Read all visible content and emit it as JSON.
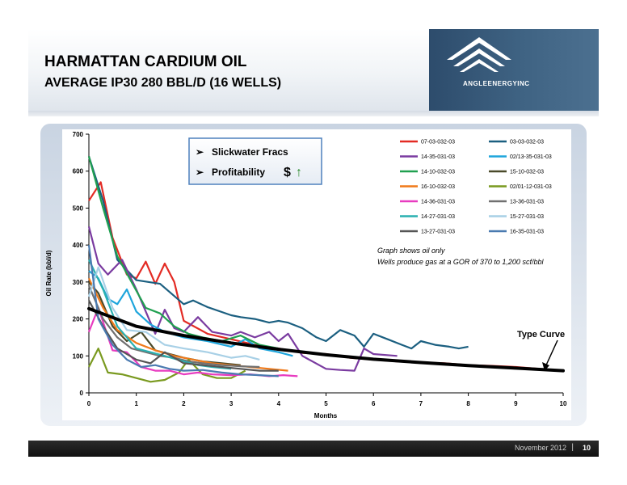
{
  "slide": {
    "title": "HARMATTAN CARDIUM OIL",
    "subtitle": "AVERAGE IP30 280 BBL/D (16 WELLS)",
    "logo_text": "ANGLEENERGYINC",
    "footer_date": "November 2012",
    "footer_separator": "|",
    "page_number": "10"
  },
  "callout": {
    "bullet1": "Slickwater Fracs",
    "bullet2": "Profitability",
    "dollar": "$",
    "arrow": "↑"
  },
  "note": {
    "line1": "Graph shows oil only",
    "line2": "Wells produce gas at a GOR of 370 to 1,200 scf/bbl"
  },
  "colors": {
    "type_curve": "#000000",
    "callout_border": "#4f81bd",
    "up_arrow": "#2a8a2a"
  },
  "chart_data": {
    "type": "line",
    "title": "",
    "xlabel": "Months",
    "ylabel": "Oil Rate (bbl/d)",
    "xlim": [
      0,
      10
    ],
    "ylim": [
      0,
      700
    ],
    "x_ticks": [
      0,
      1,
      2,
      3,
      4,
      5,
      6,
      7,
      8,
      9,
      10
    ],
    "y_ticks": [
      0,
      100,
      200,
      300,
      400,
      500,
      600,
      700
    ],
    "grid": false,
    "legend_position": "top-right",
    "type_curve_label": "Type Curve",
    "type_curve": {
      "x": [
        0,
        1,
        2,
        3,
        4,
        5,
        6,
        7,
        8,
        9,
        10
      ],
      "y": [
        228,
        180,
        155,
        135,
        118,
        103,
        91,
        82,
        74,
        67,
        60
      ]
    },
    "series": [
      {
        "name": "07-03-032-03",
        "color": "#e32b24",
        "x": [
          0,
          0.25,
          0.5,
          0.8,
          1,
          1.2,
          1.4,
          1.6,
          1.8,
          2,
          2.5,
          3,
          3.5,
          4,
          4.5,
          5,
          5.5,
          6,
          6.5,
          7,
          7.5,
          8,
          8.5,
          9,
          9.5
        ],
        "y": [
          520,
          570,
          420,
          320,
          310,
          355,
          295,
          350,
          300,
          195,
          160,
          145,
          130,
          120,
          108,
          105,
          95,
          90,
          85,
          82,
          80,
          75,
          73,
          70,
          65
        ]
      },
      {
        "name": "03-03-032-03",
        "color": "#1b5f80",
        "x": [
          0,
          0.3,
          0.6,
          1,
          1.5,
          2,
          2.2,
          2.5,
          3,
          3.2,
          3.5,
          3.8,
          4,
          4.2,
          4.5,
          4.8,
          5,
          5.3,
          5.6,
          5.8,
          6,
          6.3,
          6.6,
          6.8,
          7,
          7.3,
          7.6,
          7.8,
          8
        ],
        "y": [
          640,
          520,
          360,
          305,
          295,
          240,
          250,
          232,
          210,
          205,
          200,
          190,
          195,
          190,
          175,
          150,
          140,
          170,
          155,
          125,
          160,
          145,
          130,
          120,
          140,
          130,
          125,
          120,
          125
        ]
      },
      {
        "name": "14-35-031-03",
        "color": "#7a3ba0",
        "x": [
          0,
          0.2,
          0.4,
          0.7,
          1,
          1.4,
          1.6,
          1.8,
          2,
          2.3,
          2.6,
          3,
          3.2,
          3.5,
          3.8,
          4,
          4.2,
          4.5,
          5,
          5.3,
          5.6,
          5.8,
          6,
          6.5
        ],
        "y": [
          450,
          350,
          320,
          360,
          280,
          160,
          225,
          175,
          165,
          205,
          165,
          155,
          165,
          150,
          165,
          140,
          160,
          100,
          65,
          62,
          60,
          120,
          105,
          100
        ]
      },
      {
        "name": "02/13-35-031-03",
        "color": "#1ea5dc",
        "x": [
          0,
          0.2,
          0.4,
          0.6,
          0.8,
          1,
          1.3,
          1.6,
          2,
          2.5,
          3,
          3.3,
          3.6,
          4,
          4.3
        ],
        "y": [
          330,
          310,
          255,
          240,
          280,
          220,
          185,
          165,
          150,
          140,
          125,
          145,
          120,
          110,
          100
        ]
      },
      {
        "name": "14-10-032-03",
        "color": "#20a050",
        "x": [
          0,
          0.3,
          0.6,
          0.9,
          1.2,
          1.5,
          1.8,
          2.1,
          2.4,
          2.8,
          3.2,
          3.6,
          4
        ],
        "y": [
          640,
          500,
          370,
          300,
          230,
          215,
          180,
          160,
          150,
          140,
          155,
          130,
          120
        ]
      },
      {
        "name": "15-10-032-03",
        "color": "#4a4a2a",
        "x": [
          0,
          0.2,
          0.5,
          0.8,
          1.1,
          1.4,
          1.7,
          2,
          2.4,
          2.8,
          3.2
        ],
        "y": [
          300,
          270,
          180,
          140,
          165,
          115,
          105,
          95,
          85,
          80,
          75
        ]
      },
      {
        "name": "16-10-032-03",
        "color": "#f07a1a",
        "x": [
          0,
          0.3,
          0.6,
          1,
          1.4,
          1.8,
          2.2,
          2.6,
          3,
          3.4,
          3.8,
          4.2
        ],
        "y": [
          310,
          230,
          170,
          135,
          115,
          100,
          90,
          80,
          75,
          70,
          65,
          60
        ]
      },
      {
        "name": "02/01-12-031-03",
        "color": "#7a9a20",
        "x": [
          0,
          0.2,
          0.4,
          0.7,
          1,
          1.3,
          1.6,
          1.9,
          2.1,
          2.4,
          2.7,
          3,
          3.3
        ],
        "y": [
          70,
          120,
          55,
          50,
          40,
          30,
          35,
          55,
          90,
          50,
          40,
          40,
          60
        ]
      },
      {
        "name": "14-36-031-03",
        "color": "#e83cc0",
        "x": [
          0,
          0.2,
          0.5,
          0.8,
          1.1,
          1.4,
          1.7,
          2,
          2.3,
          2.6,
          3,
          3.4,
          3.8,
          4.1,
          4.4
        ],
        "y": [
          165,
          230,
          115,
          110,
          70,
          60,
          60,
          50,
          55,
          50,
          48,
          50,
          45,
          48,
          45
        ]
      },
      {
        "name": "13-36-031-03",
        "color": "#707070",
        "x": [
          0,
          0.3,
          0.6,
          0.9,
          1.2,
          1.5,
          1.8,
          2.1,
          2.4,
          2.8,
          3.2,
          3.6
        ],
        "y": [
          290,
          200,
          150,
          120,
          110,
          100,
          95,
          85,
          80,
          75,
          72,
          70
        ]
      },
      {
        "name": "14-27-031-03",
        "color": "#2ab0b0",
        "x": [
          0,
          0.3,
          0.6,
          1,
          1.3,
          1.6,
          2,
          2.3,
          2.6,
          3
        ],
        "y": [
          360,
          280,
          180,
          120,
          110,
          100,
          85,
          75,
          70,
          65
        ]
      },
      {
        "name": "15-27-031-03",
        "color": "#a8d0e6",
        "x": [
          0,
          0.2,
          0.5,
          0.8,
          1.2,
          1.6,
          2,
          2.5,
          3,
          3.3,
          3.6
        ],
        "y": [
          260,
          340,
          230,
          170,
          165,
          130,
          120,
          110,
          95,
          100,
          90
        ]
      },
      {
        "name": "13-27-031-03",
        "color": "#555555",
        "x": [
          0,
          0.3,
          0.6,
          1,
          1.3,
          1.6,
          2,
          2.4,
          2.8,
          3.2,
          3.6,
          4
        ],
        "y": [
          250,
          180,
          120,
          90,
          80,
          110,
          80,
          75,
          70,
          65,
          60,
          60
        ]
      },
      {
        "name": "16-35-031-03",
        "color": "#4a7ab0",
        "x": [
          0,
          0.2,
          0.5,
          0.8,
          1.1,
          1.4,
          1.7,
          2,
          2.4,
          2.8,
          3.2,
          3.6,
          4
        ],
        "y": [
          400,
          200,
          130,
          90,
          70,
          75,
          65,
          60,
          62,
          55,
          50,
          48,
          45
        ]
      }
    ]
  }
}
